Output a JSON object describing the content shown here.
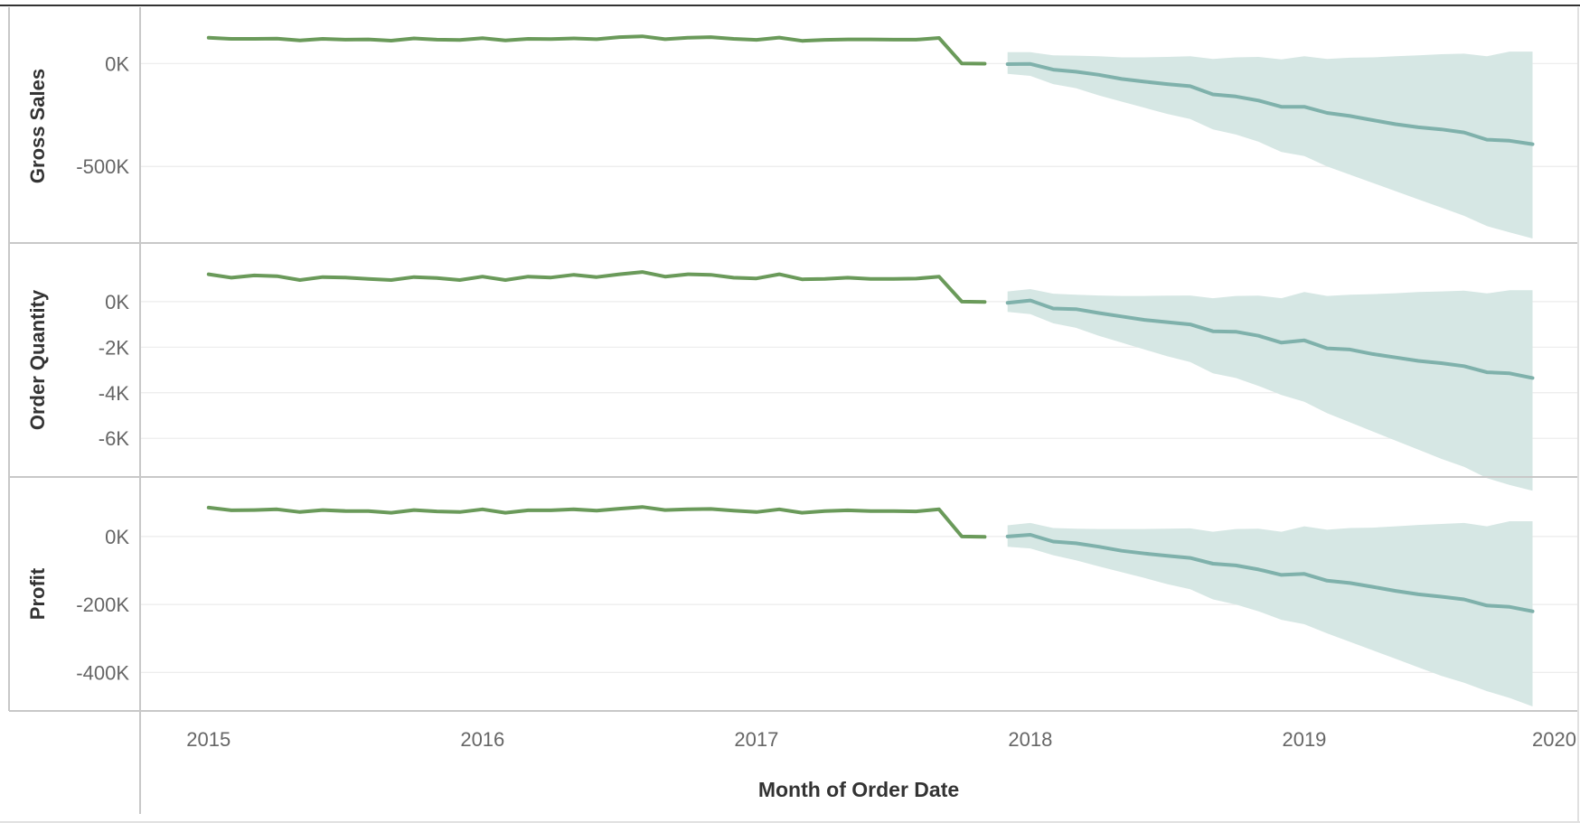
{
  "colors": {
    "actual_line": "#6a9a5a",
    "forecast_line": "#7fb1ab",
    "forecast_band": "#d6e7e4",
    "gridline": "#ececec",
    "divider": "#c8c8c8",
    "frame": "#333333"
  },
  "chart_data": {
    "type": "line",
    "x_axis": {
      "title": "Month of Order Date",
      "ticks": [
        "2015",
        "2016",
        "2017",
        "2018",
        "2019",
        "2020"
      ],
      "range": [
        "2014-10",
        "2020-01"
      ]
    },
    "actual_months": [
      "2015-01",
      "2015-02",
      "2015-03",
      "2015-04",
      "2015-05",
      "2015-06",
      "2015-07",
      "2015-08",
      "2015-09",
      "2015-10",
      "2015-11",
      "2015-12",
      "2016-01",
      "2016-02",
      "2016-03",
      "2016-04",
      "2016-05",
      "2016-06",
      "2016-07",
      "2016-08",
      "2016-09",
      "2016-10",
      "2016-11",
      "2016-12",
      "2017-01",
      "2017-02",
      "2017-03",
      "2017-04",
      "2017-05",
      "2017-06",
      "2017-07",
      "2017-08",
      "2017-09",
      "2017-10",
      "2017-11"
    ],
    "forecast_months": [
      "2017-12",
      "2018-01",
      "2018-02",
      "2018-03",
      "2018-04",
      "2018-05",
      "2018-06",
      "2018-07",
      "2018-08",
      "2018-09",
      "2018-10",
      "2018-11",
      "2018-12",
      "2019-01",
      "2019-02",
      "2019-03",
      "2019-04",
      "2019-05",
      "2019-06",
      "2019-07",
      "2019-08",
      "2019-09",
      "2019-10",
      "2019-11"
    ],
    "panels": [
      {
        "measure": "Gross Sales",
        "ylim": [
          -850000,
          190000
        ],
        "ticks": [
          0,
          -500000
        ],
        "tick_labels": [
          "0K",
          "-500K"
        ],
        "actual": [
          125000,
          120000,
          120000,
          121000,
          112000,
          120000,
          116000,
          117000,
          111000,
          122000,
          116000,
          114000,
          123000,
          112000,
          120000,
          119000,
          122000,
          118000,
          128000,
          132000,
          118000,
          125000,
          128000,
          120000,
          115000,
          126000,
          110000,
          115000,
          117000,
          117000,
          116000,
          116000,
          124000,
          0,
          -1000
        ],
        "forecast": [
          -3000,
          -2000,
          -30000,
          -40000,
          -55000,
          -75000,
          -88000,
          -100000,
          -110000,
          -150000,
          -160000,
          -180000,
          -210000,
          -210000,
          -240000,
          -255000,
          -275000,
          -295000,
          -310000,
          -320000,
          -335000,
          -370000,
          -375000,
          -392000
        ],
        "upper": [
          55000,
          55000,
          40000,
          38000,
          35000,
          30000,
          30000,
          32000,
          35000,
          22000,
          30000,
          32000,
          20000,
          35000,
          22000,
          28000,
          30000,
          35000,
          40000,
          45000,
          48000,
          35000,
          58000,
          58000
        ],
        "lower": [
          -50000,
          -60000,
          -100000,
          -120000,
          -155000,
          -185000,
          -215000,
          -245000,
          -270000,
          -320000,
          -345000,
          -380000,
          -430000,
          -450000,
          -500000,
          -540000,
          -580000,
          -620000,
          -660000,
          -700000,
          -740000,
          -790000,
          -820000,
          -850000
        ]
      },
      {
        "measure": "Order Quantity",
        "ylim": [
          -7500,
          1900
        ],
        "ticks": [
          0,
          -2000,
          -4000,
          -6000
        ],
        "tick_labels": [
          "0K",
          "-2K",
          "-4K",
          "-6K"
        ],
        "actual": [
          1200,
          1050,
          1150,
          1120,
          950,
          1080,
          1060,
          1000,
          950,
          1080,
          1040,
          950,
          1100,
          950,
          1100,
          1060,
          1180,
          1080,
          1200,
          1300,
          1100,
          1200,
          1180,
          1050,
          1020,
          1200,
          980,
          1000,
          1050,
          1000,
          1000,
          1010,
          1100,
          0,
          -10
        ],
        "forecast": [
          -50,
          50,
          -300,
          -330,
          -500,
          -650,
          -800,
          -900,
          -1000,
          -1300,
          -1320,
          -1500,
          -1800,
          -1700,
          -2050,
          -2100,
          -2300,
          -2450,
          -2600,
          -2700,
          -2830,
          -3100,
          -3150,
          -3350
        ],
        "upper": [
          450,
          550,
          350,
          300,
          270,
          250,
          250,
          260,
          270,
          150,
          250,
          260,
          150,
          420,
          250,
          300,
          330,
          370,
          420,
          450,
          480,
          360,
          500,
          500
        ],
        "lower": [
          -450,
          -550,
          -950,
          -1150,
          -1500,
          -1800,
          -2100,
          -2400,
          -2650,
          -3150,
          -3350,
          -3700,
          -4100,
          -4400,
          -4900,
          -5300,
          -5700,
          -6100,
          -6500,
          -6900,
          -7250,
          -7750,
          -8050,
          -8300
        ]
      },
      {
        "measure": "Profit",
        "ylim": [
          -500000,
          130000
        ],
        "ticks": [
          0,
          -200000,
          -400000
        ],
        "tick_labels": [
          "0K",
          "-200K",
          "-400K"
        ],
        "actual": [
          85000,
          77000,
          78000,
          80000,
          72000,
          78000,
          75000,
          75000,
          70000,
          78000,
          74000,
          72000,
          80000,
          70000,
          77000,
          77000,
          80000,
          76000,
          82000,
          87000,
          78000,
          80000,
          81000,
          76000,
          72000,
          80000,
          70000,
          75000,
          77000,
          75000,
          75000,
          74000,
          80000,
          0,
          -1000
        ],
        "forecast": [
          0,
          5000,
          -15000,
          -20000,
          -30000,
          -42000,
          -50000,
          -57000,
          -63000,
          -80000,
          -85000,
          -97000,
          -113000,
          -110000,
          -130000,
          -137000,
          -148000,
          -160000,
          -170000,
          -177000,
          -185000,
          -203000,
          -207000,
          -220000
        ],
        "upper": [
          33000,
          40000,
          25000,
          23000,
          22000,
          22000,
          22000,
          23000,
          24000,
          14000,
          22000,
          23000,
          14000,
          30000,
          20000,
          25000,
          26000,
          30000,
          34000,
          37000,
          40000,
          30000,
          45000,
          45000
        ],
        "lower": [
          -30000,
          -35000,
          -55000,
          -70000,
          -88000,
          -105000,
          -122000,
          -140000,
          -155000,
          -185000,
          -200000,
          -220000,
          -245000,
          -258000,
          -285000,
          -310000,
          -335000,
          -360000,
          -385000,
          -410000,
          -430000,
          -455000,
          -475000,
          -500000
        ]
      }
    ]
  }
}
